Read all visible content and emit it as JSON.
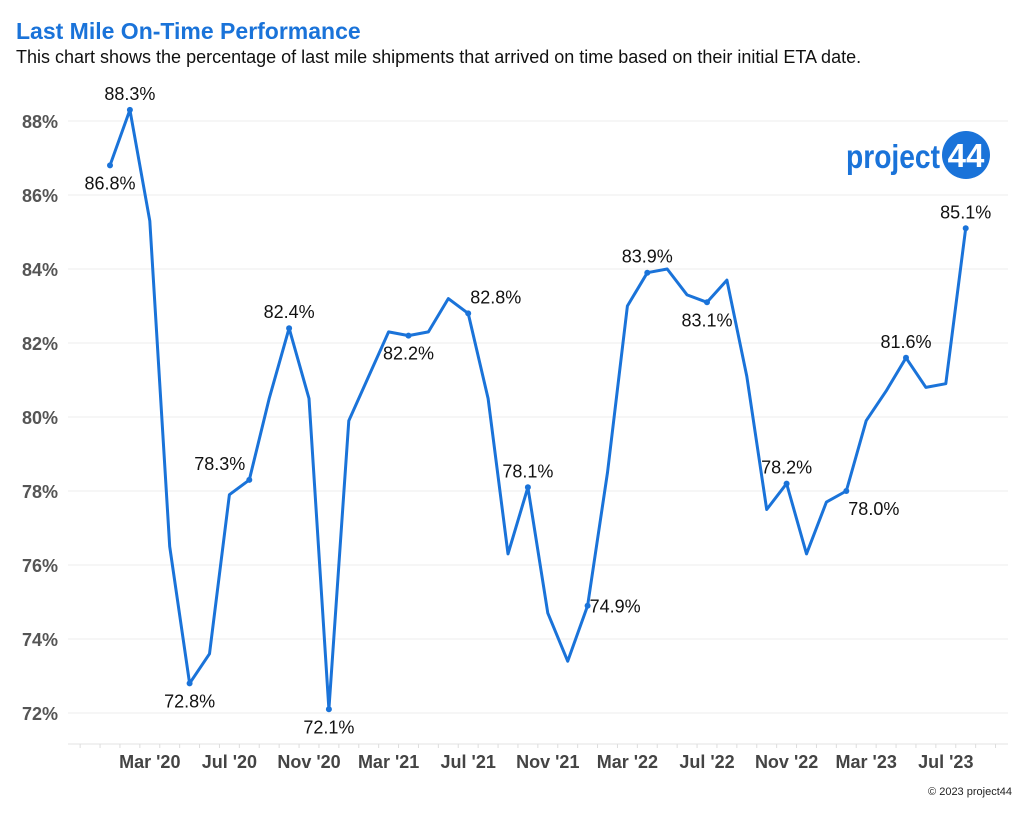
{
  "header": {
    "title": "Last Mile On-Time Performance",
    "subtitle": "This chart shows the percentage of last mile shipments that arrived on time based on their initial ETA date."
  },
  "logo": {
    "text": "project",
    "number": "44",
    "color": "#1a73d9"
  },
  "footer": {
    "copyright": "© 2023 project44"
  },
  "chart_data": {
    "type": "line",
    "title": "Last Mile On-Time Performance",
    "xlabel": "",
    "ylabel": "",
    "ylim": [
      71.5,
      89.0
    ],
    "y_ticks": [
      72,
      74,
      76,
      78,
      80,
      82,
      84,
      86,
      88
    ],
    "y_tick_labels": [
      "72%",
      "74%",
      "76%",
      "78%",
      "80%",
      "82%",
      "84%",
      "86%",
      "88%"
    ],
    "x_tick_labels": [
      "Mar '20",
      "Jul '20",
      "Nov '20",
      "Mar '21",
      "Jul '21",
      "Nov '21",
      "Mar '22",
      "Jul '22",
      "Nov '22",
      "Mar '23",
      "Jul '23"
    ],
    "grid": true,
    "line_color": "#1a73d9",
    "x": [
      "Jan 2020",
      "Feb 2020",
      "Mar 2020",
      "Apr 2020",
      "May 2020",
      "Jun 2020",
      "Jul 2020",
      "Aug 2020",
      "Sep 2020",
      "Oct 2020",
      "Nov 2020",
      "Dec 2020",
      "Jan 2021",
      "Feb 2021",
      "Mar 2021",
      "Apr 2021",
      "May 2021",
      "Jun 2021",
      "Jul 2021",
      "Aug 2021",
      "Sep 2021",
      "Oct 2021",
      "Nov 2021",
      "Dec 2021",
      "Jan 2022",
      "Feb 2022",
      "Mar 2022",
      "Apr 2022",
      "May 2022",
      "Jun 2022",
      "Jul 2022",
      "Aug 2022",
      "Sep 2022",
      "Oct 2022",
      "Nov 2022",
      "Dec 2022",
      "Jan 2023",
      "Feb 2023",
      "Mar 2023",
      "Apr 2023",
      "May 2023",
      "Jun 2023",
      "Jul 2023",
      "Aug 2023"
    ],
    "values": [
      86.8,
      88.3,
      85.3,
      76.5,
      72.8,
      73.6,
      77.9,
      78.3,
      80.5,
      82.4,
      80.5,
      72.1,
      79.9,
      81.1,
      82.3,
      82.2,
      82.3,
      83.2,
      82.8,
      80.5,
      76.3,
      78.1,
      74.7,
      73.4,
      74.9,
      78.5,
      83.0,
      83.9,
      84.0,
      83.3,
      83.1,
      83.7,
      81.1,
      77.5,
      78.2,
      76.3,
      77.7,
      78.0,
      79.9,
      80.7,
      81.6,
      80.8,
      80.9,
      85.1
    ],
    "data_labels": [
      {
        "index": 0,
        "text": "86.8%",
        "position": "below"
      },
      {
        "index": 1,
        "text": "88.3%",
        "position": "above"
      },
      {
        "index": 4,
        "text": "72.8%",
        "position": "below"
      },
      {
        "index": 7,
        "text": "78.3%",
        "position": "above-left"
      },
      {
        "index": 9,
        "text": "82.4%",
        "position": "above"
      },
      {
        "index": 11,
        "text": "72.1%",
        "position": "below"
      },
      {
        "index": 15,
        "text": "82.2%",
        "position": "below"
      },
      {
        "index": 18,
        "text": "82.8%",
        "position": "above-right"
      },
      {
        "index": 21,
        "text": "78.1%",
        "position": "above"
      },
      {
        "index": 24,
        "text": "74.9%",
        "position": "right"
      },
      {
        "index": 27,
        "text": "83.9%",
        "position": "above"
      },
      {
        "index": 30,
        "text": "83.1%",
        "position": "below"
      },
      {
        "index": 34,
        "text": "78.2%",
        "position": "above"
      },
      {
        "index": 37,
        "text": "78.0%",
        "position": "below-right"
      },
      {
        "index": 40,
        "text": "81.6%",
        "position": "above"
      },
      {
        "index": 43,
        "text": "85.1%",
        "position": "above"
      }
    ]
  }
}
